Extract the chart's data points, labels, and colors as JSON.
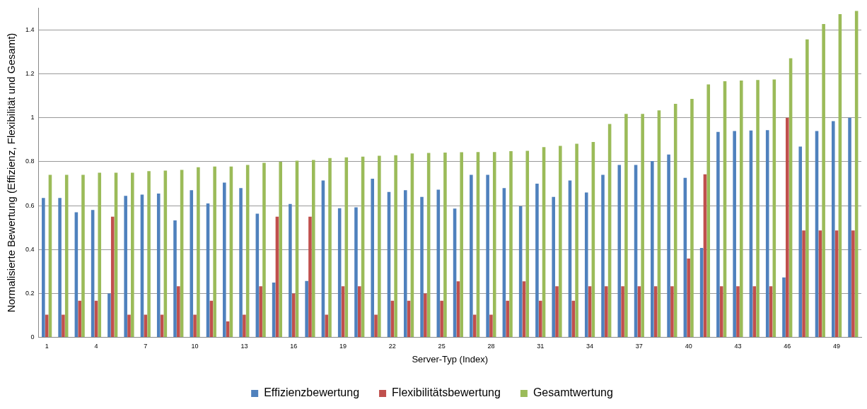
{
  "chart_data": {
    "type": "bar",
    "xlabel": "Server-Typ (Index)",
    "ylabel": "Normalisierte Bewertung (Effizienz, Flexibilität und Gesamt)",
    "categories": [
      "1",
      null,
      null,
      "4",
      null,
      null,
      "7",
      null,
      null,
      "10",
      null,
      null,
      "13",
      null,
      null,
      "16",
      null,
      null,
      "19",
      null,
      null,
      "22",
      null,
      null,
      "25",
      null,
      null,
      "28",
      null,
      null,
      "31",
      null,
      null,
      "34",
      null,
      null,
      "37",
      null,
      null,
      "40",
      null,
      null,
      "43",
      null,
      null,
      "46",
      null,
      null,
      "49",
      null
    ],
    "series": [
      {
        "name": "Effizienzbewertung",
        "color": "#4f81bd",
        "values": [
          0.635,
          0.635,
          0.57,
          0.58,
          0.2,
          0.645,
          0.65,
          0.655,
          0.533,
          0.67,
          0.61,
          0.705,
          0.68,
          0.563,
          0.25,
          0.608,
          0.257,
          0.715,
          0.588,
          0.592,
          0.723,
          0.662,
          0.67,
          0.64,
          0.673,
          0.587,
          0.74,
          0.74,
          0.68,
          0.597,
          0.7,
          0.64,
          0.715,
          0.66,
          0.74,
          0.785,
          0.785,
          0.803,
          0.833,
          0.727,
          0.407,
          0.936,
          0.94,
          0.942,
          0.944,
          0.273,
          0.869,
          0.94,
          0.985,
          1.0
        ]
      },
      {
        "name": "Flexibilitätsbewertung",
        "color": "#c0504d",
        "values": [
          0.103,
          0.103,
          0.167,
          0.167,
          0.55,
          0.103,
          0.103,
          0.103,
          0.233,
          0.103,
          0.167,
          0.073,
          0.103,
          0.233,
          0.55,
          0.2,
          0.55,
          0.103,
          0.233,
          0.233,
          0.103,
          0.167,
          0.167,
          0.2,
          0.167,
          0.255,
          0.103,
          0.103,
          0.167,
          0.255,
          0.167,
          0.233,
          0.167,
          0.233,
          0.233,
          0.233,
          0.233,
          0.233,
          0.233,
          0.359,
          0.743,
          0.233,
          0.233,
          0.233,
          0.233,
          1.0,
          0.487,
          0.487,
          0.487,
          0.487
        ]
      },
      {
        "name": "Gesamtwertung",
        "color": "#9bbb59",
        "values": [
          0.74,
          0.74,
          0.74,
          0.75,
          0.75,
          0.75,
          0.757,
          0.76,
          0.763,
          0.775,
          0.778,
          0.778,
          0.785,
          0.795,
          0.8,
          0.805,
          0.808,
          0.817,
          0.82,
          0.823,
          0.827,
          0.83,
          0.838,
          0.84,
          0.842,
          0.843,
          0.844,
          0.844,
          0.848,
          0.85,
          0.867,
          0.872,
          0.882,
          0.89,
          0.972,
          1.018,
          1.018,
          1.034,
          1.064,
          1.086,
          1.152,
          1.167,
          1.17,
          1.172,
          1.175,
          1.271,
          1.357,
          1.427,
          1.472,
          1.487
        ]
      }
    ],
    "ylim": [
      0,
      1.5
    ],
    "yticks": [
      0,
      0.2,
      0.4,
      0.6,
      0.8,
      1,
      1.2,
      1.4
    ],
    "grid": "y",
    "legend": "bottom"
  }
}
